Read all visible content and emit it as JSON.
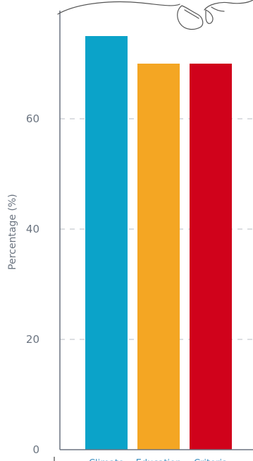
{
  "chart_data": {
    "type": "bar",
    "categories": [
      "Climate",
      "Education",
      "Criteria"
    ],
    "values": [
      75,
      70,
      70
    ],
    "colors": [
      "#0ba3c9",
      "#f4a623",
      "#d0021b"
    ],
    "title": "",
    "xlabel": "",
    "ylabel": "Percentage (%)",
    "ylim": [
      0,
      80
    ],
    "yticks": [
      "0",
      "20",
      "40",
      "60"
    ],
    "grid": true
  },
  "illustration": {
    "icon": "shoes-doodle-icon"
  }
}
